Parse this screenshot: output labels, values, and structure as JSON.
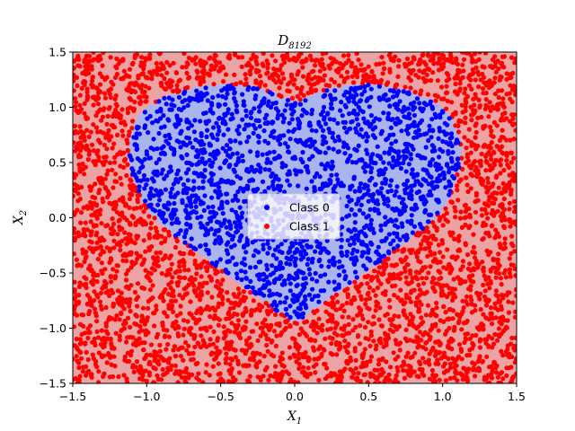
{
  "chart_data": {
    "type": "scatter",
    "title": "D",
    "title_subscript": "8192",
    "xlabel": "X",
    "xlabel_subscript": "1",
    "ylabel": "X",
    "ylabel_subscript": "2",
    "xlim": [
      -1.5,
      1.5
    ],
    "ylim": [
      -1.5,
      1.5
    ],
    "x_ticks": [
      -1.5,
      -1.0,
      -0.5,
      0.0,
      0.5,
      1.0,
      1.5
    ],
    "y_ticks": [
      -1.5,
      -1.0,
      -0.5,
      0.0,
      0.5,
      1.0,
      1.5
    ],
    "x_tick_labels": [
      "−1.5",
      "−1.0",
      "−0.5",
      "0.0",
      "0.5",
      "1.0",
      "1.5"
    ],
    "y_tick_labels": [
      "−1.5",
      "−1.0",
      "−0.5",
      "0.0",
      "0.5",
      "1.0",
      "1.5"
    ],
    "grid": false,
    "legend_position": "center",
    "background": {
      "class_0_region_color": "#aab4ee",
      "class_1_region_color": "#eca3a3"
    },
    "series": [
      {
        "name": "Class 0",
        "color": "#0000ff",
        "region": "inside heart-shaped boundary"
      },
      {
        "name": "Class 1",
        "color": "#ff0000",
        "region": "outside heart-shaped boundary"
      }
    ],
    "heart_boundary": [
      [
        -0.03,
        1.06
      ],
      [
        -0.15,
        1.13
      ],
      [
        -0.3,
        1.19
      ],
      [
        -0.5,
        1.21
      ],
      [
        -0.7,
        1.17
      ],
      [
        -0.9,
        1.08
      ],
      [
        -1.05,
        0.93
      ],
      [
        -1.12,
        0.7
      ],
      [
        -1.12,
        0.5
      ],
      [
        -1.07,
        0.28
      ],
      [
        -1.0,
        0.08
      ],
      [
        -0.85,
        -0.12
      ],
      [
        -0.65,
        -0.32
      ],
      [
        -0.45,
        -0.52
      ],
      [
        -0.25,
        -0.72
      ],
      [
        -0.1,
        -0.86
      ],
      [
        0.0,
        -0.95
      ],
      [
        0.1,
        -0.86
      ],
      [
        0.25,
        -0.72
      ],
      [
        0.45,
        -0.52
      ],
      [
        0.65,
        -0.32
      ],
      [
        0.85,
        -0.12
      ],
      [
        1.0,
        0.08
      ],
      [
        1.07,
        0.28
      ],
      [
        1.12,
        0.5
      ],
      [
        1.12,
        0.7
      ],
      [
        1.05,
        0.93
      ],
      [
        0.9,
        1.08
      ],
      [
        0.7,
        1.17
      ],
      [
        0.5,
        1.21
      ],
      [
        0.3,
        1.19
      ],
      [
        0.15,
        1.13
      ],
      [
        0.03,
        1.06
      ],
      [
        0.0,
        1.04
      ]
    ],
    "sample_points": {
      "class_0": [
        [
          -0.85,
          0.75
        ],
        [
          -0.6,
          0.95
        ],
        [
          -0.4,
          1.05
        ],
        [
          -0.2,
          0.9
        ],
        [
          0.0,
          0.8
        ],
        [
          0.2,
          0.9
        ],
        [
          0.4,
          1.05
        ],
        [
          0.6,
          0.95
        ],
        [
          0.85,
          0.75
        ],
        [
          -0.9,
          0.4
        ],
        [
          -0.6,
          0.5
        ],
        [
          -0.3,
          0.6
        ],
        [
          0.0,
          0.55
        ],
        [
          0.3,
          0.6
        ],
        [
          0.6,
          0.5
        ],
        [
          0.9,
          0.4
        ],
        [
          -0.7,
          0.1
        ],
        [
          -0.4,
          0.2
        ],
        [
          -0.1,
          0.25
        ],
        [
          0.2,
          0.2
        ],
        [
          0.5,
          0.15
        ],
        [
          0.75,
          0.1
        ],
        [
          -0.5,
          -0.2
        ],
        [
          -0.2,
          -0.1
        ],
        [
          0.1,
          -0.15
        ],
        [
          0.4,
          -0.2
        ],
        [
          -0.3,
          -0.45
        ],
        [
          0.0,
          -0.4
        ],
        [
          0.3,
          -0.45
        ],
        [
          -0.1,
          -0.7
        ],
        [
          0.1,
          -0.7
        ],
        [
          0.0,
          -0.85
        ],
        [
          -1.0,
          0.6
        ],
        [
          1.0,
          0.6
        ],
        [
          -0.75,
          0.3
        ],
        [
          0.75,
          0.3
        ],
        [
          -0.45,
          0.8
        ],
        [
          0.45,
          0.8
        ],
        [
          -0.15,
          0.4
        ],
        [
          0.15,
          0.4
        ]
      ],
      "class_1": [
        [
          -1.4,
          1.4
        ],
        [
          -1.2,
          1.3
        ],
        [
          -0.9,
          1.35
        ],
        [
          -0.6,
          1.4
        ],
        [
          -0.3,
          1.3
        ],
        [
          0.0,
          1.25
        ],
        [
          0.3,
          1.35
        ],
        [
          0.6,
          1.4
        ],
        [
          0.9,
          1.35
        ],
        [
          1.2,
          1.3
        ],
        [
          1.4,
          1.4
        ],
        [
          -1.4,
          0.9
        ],
        [
          -1.3,
          0.5
        ],
        [
          -1.4,
          0.1
        ],
        [
          -1.3,
          -0.3
        ],
        [
          -1.4,
          -0.7
        ],
        [
          -1.3,
          -1.1
        ],
        [
          -1.4,
          -1.4
        ],
        [
          1.4,
          0.9
        ],
        [
          1.3,
          0.5
        ],
        [
          1.4,
          0.1
        ],
        [
          1.3,
          -0.3
        ],
        [
          1.4,
          -0.7
        ],
        [
          1.3,
          -1.1
        ],
        [
          1.4,
          -1.4
        ],
        [
          -1.1,
          -0.4
        ],
        [
          -0.9,
          -0.7
        ],
        [
          -0.7,
          -1.0
        ],
        [
          -0.4,
          -1.2
        ],
        [
          -0.1,
          -1.3
        ],
        [
          0.2,
          -1.2
        ],
        [
          0.5,
          -1.1
        ],
        [
          0.8,
          -0.9
        ],
        [
          1.05,
          -0.5
        ],
        [
          -1.15,
          0.0
        ],
        [
          1.15,
          0.0
        ],
        [
          -0.6,
          -1.4
        ],
        [
          0.6,
          -1.4
        ],
        [
          0.0,
          -1.1
        ],
        [
          -0.05,
          1.15
        ],
        [
          0.05,
          1.18
        ],
        [
          -1.25,
          1.0
        ],
        [
          1.25,
          1.0
        ],
        [
          -0.95,
          -1.25
        ],
        [
          0.95,
          -1.25
        ]
      ]
    }
  }
}
